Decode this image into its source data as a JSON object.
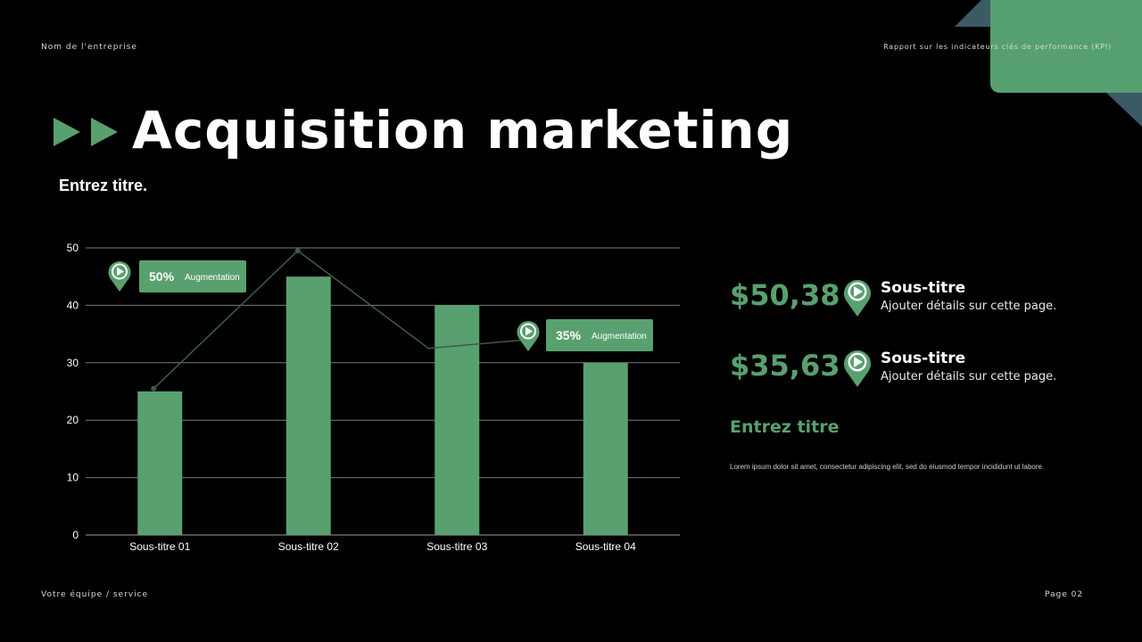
{
  "header": {
    "company": "Nom de l'entreprise",
    "report": "Rapport sur les indicateurs clés de performance (KPI)"
  },
  "title": "Acquisition marketing",
  "subtitle": "Entrez titre.",
  "colors": {
    "accent": "#59a06f",
    "background": "#000000",
    "deco_slate": "#3c5a66"
  },
  "chart_data": {
    "type": "bar",
    "categories": [
      "Sous-titre 01",
      "Sous-titre 02",
      "Sous-titre 03",
      "Sous-titre 04"
    ],
    "values": [
      25,
      45,
      40,
      30
    ],
    "line_values": [
      25.5,
      49.5,
      32.5,
      34
    ],
    "ylim": [
      0,
      50
    ],
    "yticks": [
      0,
      10,
      20,
      30,
      40,
      50
    ],
    "grid": true,
    "annotations": [
      {
        "value": "50%",
        "label": "Augmentation",
        "icon": "flag-pin-icon"
      },
      {
        "value": "35%",
        "label": "Augmentation",
        "icon": "flag-pin-icon"
      }
    ]
  },
  "stats": [
    {
      "value": "$50,38",
      "subtitle": "Sous-titre",
      "detail": "Ajouter détails sur cette page.",
      "icon": "flag-pin-icon"
    },
    {
      "value": "$35,63",
      "subtitle": "Sous-titre",
      "detail": "Ajouter détails sur cette page.",
      "icon": "flag-pin-icon"
    }
  ],
  "section": {
    "heading": "Entrez titre",
    "body": "Lorem ipsum dolor sit amet, consectetur adipiscing elit, sed do eiusmod tempor incididunt ut labore."
  },
  "footer": {
    "team": "Votre équipe / service",
    "page": "Page 02"
  }
}
